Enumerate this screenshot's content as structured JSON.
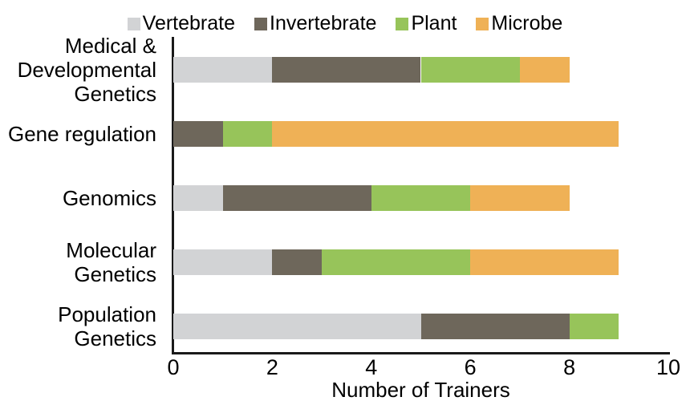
{
  "chart_data": {
    "type": "bar",
    "orientation": "horizontal",
    "stacked": true,
    "title": "",
    "xlabel": "Number of Trainers",
    "ylabel": "",
    "categories": [
      "Medical &\nDevelopmental\nGenetics",
      "Gene regulation",
      "Genomics",
      "Molecular\nGenetics",
      "Population\nGenetics"
    ],
    "series": [
      {
        "name": "Vertebrate",
        "color": "#D2D3D5",
        "values": [
          2,
          0,
          1,
          2,
          5
        ]
      },
      {
        "name": "Invertebrate",
        "color": "#6E675B",
        "values": [
          3,
          1,
          3,
          1,
          3
        ]
      },
      {
        "name": "Plant",
        "color": "#97C45A",
        "values": [
          2,
          1,
          2,
          3,
          1
        ]
      },
      {
        "name": "Microbe",
        "color": "#EFB156",
        "values": [
          1,
          7,
          2,
          3,
          0
        ]
      }
    ],
    "xlim": [
      0,
      10
    ],
    "xticks": [
      0,
      2,
      4,
      6,
      8,
      10
    ],
    "legend_position": "top",
    "grid": false
  },
  "colors": {
    "axis": "#1A1A1A",
    "text": "#000000",
    "background": "#FFFFFF"
  }
}
